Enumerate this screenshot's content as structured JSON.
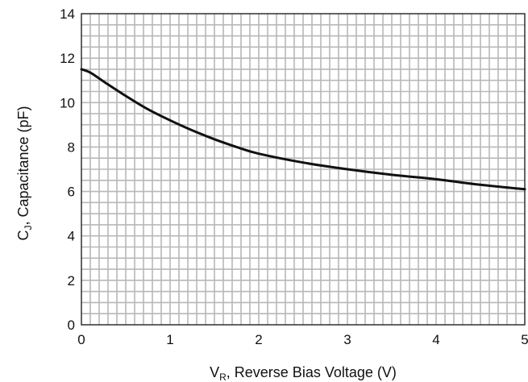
{
  "chart_data": {
    "type": "line",
    "title": "",
    "xlabel": {
      "main": "V",
      "subscript": "R",
      "rest": ", Reverse Bias Voltage (V)"
    },
    "ylabel": {
      "main": "C",
      "subscript": "J",
      "rest": ", Capacitance (pF)"
    },
    "xlim": [
      0,
      5
    ],
    "ylim": [
      0,
      14
    ],
    "x_ticks": [
      0,
      1,
      2,
      3,
      4,
      5
    ],
    "y_ticks": [
      0,
      2,
      4,
      6,
      8,
      10,
      12,
      14
    ],
    "x_tick_labels": [
      "0",
      "1",
      "2",
      "3",
      "4",
      "5"
    ],
    "y_tick_labels": [
      "0",
      "2",
      "4",
      "6",
      "8",
      "10",
      "12",
      "14"
    ],
    "grid": true,
    "grid_minor_x_step": 0.1,
    "grid_minor_y_step": 0.5,
    "series": [
      {
        "x": [
          0,
          0.1,
          0.25,
          0.5,
          0.75,
          1.0,
          1.25,
          1.5,
          1.75,
          2.0,
          2.5,
          3.0,
          3.5,
          4.0,
          4.5,
          5.0
        ],
        "y": [
          11.5,
          11.35,
          10.95,
          10.3,
          9.7,
          9.2,
          8.75,
          8.35,
          8.0,
          7.7,
          7.3,
          7.0,
          6.75,
          6.55,
          6.3,
          6.1
        ]
      }
    ],
    "colors": {
      "line": "#111111",
      "grid": "#b8b8b8",
      "axis": "#222222"
    }
  }
}
